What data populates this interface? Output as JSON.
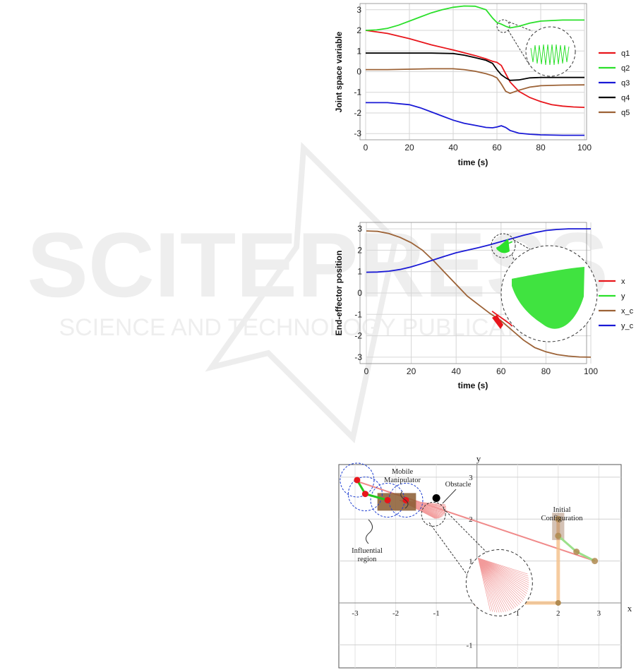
{
  "watermark": {
    "main": "SCITEPRESS",
    "sub": "SCIENCE AND TECHNOLOGY PUBLICATIONS"
  },
  "chart_data": [
    {
      "type": "line",
      "xlabel": "time (s)",
      "ylabel": "Joint space variable",
      "xlim": [
        0,
        100
      ],
      "ylim": [
        -3.3,
        3.3
      ],
      "xticks": [
        0,
        20,
        40,
        60,
        80,
        100
      ],
      "yticks": [
        3,
        2,
        1,
        0,
        -1,
        -2,
        -3
      ],
      "grid": true,
      "legend_position": "right",
      "series": [
        {
          "name": "q1",
          "color": "#e8151b",
          "x": [
            0,
            10,
            20,
            30,
            40,
            50,
            55,
            58,
            60,
            62,
            64,
            66,
            70,
            75,
            80,
            85,
            90,
            95,
            100
          ],
          "y": [
            2.0,
            1.85,
            1.6,
            1.3,
            1.05,
            0.78,
            0.62,
            0.5,
            0.45,
            0.3,
            -0.1,
            -0.5,
            -0.95,
            -1.25,
            -1.45,
            -1.6,
            -1.67,
            -1.71,
            -1.73
          ]
        },
        {
          "name": "q2",
          "color": "#2be02b",
          "x": [
            0,
            5,
            10,
            15,
            20,
            25,
            30,
            35,
            40,
            45,
            50,
            55,
            58,
            60,
            62,
            64,
            66,
            70,
            75,
            80,
            90,
            100
          ],
          "y": [
            2.0,
            2.02,
            2.1,
            2.25,
            2.45,
            2.65,
            2.85,
            3.0,
            3.12,
            3.18,
            3.17,
            3.0,
            2.6,
            2.38,
            2.3,
            2.2,
            2.12,
            2.2,
            2.35,
            2.45,
            2.5,
            2.5
          ]
        },
        {
          "name": "q3",
          "color": "#1a1ad6",
          "x": [
            0,
            10,
            20,
            25,
            30,
            35,
            40,
            45,
            50,
            55,
            58,
            60,
            62,
            64,
            66,
            70,
            75,
            80,
            90,
            100
          ],
          "y": [
            -1.5,
            -1.5,
            -1.6,
            -1.75,
            -1.95,
            -2.15,
            -2.35,
            -2.5,
            -2.6,
            -2.7,
            -2.72,
            -2.68,
            -2.62,
            -2.7,
            -2.85,
            -2.98,
            -3.03,
            -3.06,
            -3.08,
            -3.08
          ]
        },
        {
          "name": "q4",
          "color": "#000000",
          "x": [
            0,
            10,
            20,
            30,
            40,
            45,
            50,
            55,
            58,
            60,
            62,
            64,
            66,
            70,
            75,
            80,
            90,
            100
          ],
          "y": [
            0.9,
            0.9,
            0.9,
            0.9,
            0.88,
            0.8,
            0.68,
            0.55,
            0.4,
            0.1,
            -0.15,
            -0.3,
            -0.42,
            -0.4,
            -0.3,
            -0.28,
            -0.28,
            -0.28
          ]
        },
        {
          "name": "q5",
          "color": "#9c6236",
          "x": [
            0,
            10,
            20,
            30,
            40,
            45,
            50,
            55,
            58,
            60,
            62,
            64,
            66,
            70,
            75,
            80,
            90,
            100
          ],
          "y": [
            0.1,
            0.1,
            0.12,
            0.14,
            0.14,
            0.1,
            0.02,
            -0.1,
            -0.2,
            -0.3,
            -0.6,
            -0.95,
            -1.05,
            -0.9,
            -0.75,
            -0.68,
            -0.65,
            -0.64
          ]
        }
      ]
    },
    {
      "type": "line",
      "xlabel": "time (s)",
      "ylabel": "End-effector position",
      "xlim": [
        0,
        100
      ],
      "ylim": [
        -3.3,
        3.3
      ],
      "xticks": [
        0,
        20,
        40,
        60,
        80,
        100
      ],
      "yticks": [
        3,
        2,
        1,
        0,
        -1,
        -2,
        -3
      ],
      "grid": true,
      "legend_position": "right",
      "series": [
        {
          "name": "x",
          "color": "#e8151b",
          "x": [
            56,
            58,
            60,
            62,
            64,
            65
          ],
          "y": [
            -0.85,
            -1.0,
            -1.15,
            -1.3,
            -1.45,
            -1.55
          ]
        },
        {
          "name": "y",
          "color": "#2be02b",
          "x": [
            58,
            60,
            62,
            64,
            65
          ],
          "y": [
            2.1,
            2.2,
            2.28,
            2.35,
            2.4
          ]
        },
        {
          "name": "x_c",
          "color": "#9c6236",
          "x": [
            0,
            5,
            10,
            15,
            20,
            25,
            30,
            35,
            40,
            45,
            50,
            55,
            60,
            65,
            70,
            75,
            80,
            85,
            90,
            95,
            100
          ],
          "y": [
            2.9,
            2.88,
            2.78,
            2.6,
            2.35,
            2.0,
            1.5,
            0.95,
            0.4,
            -0.15,
            -0.55,
            -0.95,
            -1.3,
            -1.75,
            -2.2,
            -2.55,
            -2.75,
            -2.88,
            -2.95,
            -2.99,
            -3.0
          ]
        },
        {
          "name": "y_c",
          "color": "#1a1ad6",
          "x": [
            0,
            5,
            10,
            15,
            20,
            25,
            30,
            35,
            40,
            45,
            50,
            55,
            60,
            65,
            70,
            75,
            80,
            85,
            90,
            95,
            100
          ],
          "y": [
            0.97,
            0.98,
            1.02,
            1.1,
            1.22,
            1.38,
            1.55,
            1.72,
            1.88,
            2.0,
            2.12,
            2.25,
            2.4,
            2.55,
            2.7,
            2.82,
            2.92,
            2.97,
            3.0,
            3.0,
            3.0
          ]
        }
      ]
    },
    {
      "type": "scatter",
      "xlabel": "x",
      "ylabel": "y",
      "xlim": [
        -3.4,
        3.55
      ],
      "ylim": [
        -1.55,
        3.3
      ],
      "xticks": [
        -3,
        -2,
        -1,
        1,
        2,
        3
      ],
      "yticks": [
        -1,
        1,
        2,
        3
      ],
      "grid": true,
      "annotations": {
        "mobile_manipulator": [
          "Mobile",
          "Manipulator"
        ],
        "obstacle": "Obstacle",
        "initial_configuration": [
          "Initial",
          "Configuration"
        ],
        "influential_region": [
          "Influential",
          "region"
        ]
      },
      "path": {
        "color": "#f08a8a",
        "x": [
          -2.95,
          2.9
        ],
        "y": [
          2.9,
          1.0
        ]
      },
      "obstacle_point": [
        -1.0,
        2.5
      ],
      "initial_config": {
        "base": [
          [
            2.0,
            2.0
          ],
          [
            2.0,
            1.6
          ]
        ],
        "arm": [
          [
            2.0,
            1.6
          ],
          [
            2.45,
            1.22
          ],
          [
            2.9,
            1.0
          ]
        ],
        "origin": [
          0.0,
          0.0
        ],
        "base_path": [
          [
            0.0,
            0.0
          ],
          [
            2.0,
            0.0
          ],
          [
            2.0,
            2.0
          ]
        ]
      },
      "final_config": {
        "base": [
          [
            -2.2,
            2.45
          ],
          [
            -1.75,
            2.45
          ]
        ],
        "arm": [
          [
            -2.2,
            2.45
          ],
          [
            -2.75,
            2.6
          ],
          [
            -2.95,
            2.93
          ]
        ]
      }
    }
  ]
}
